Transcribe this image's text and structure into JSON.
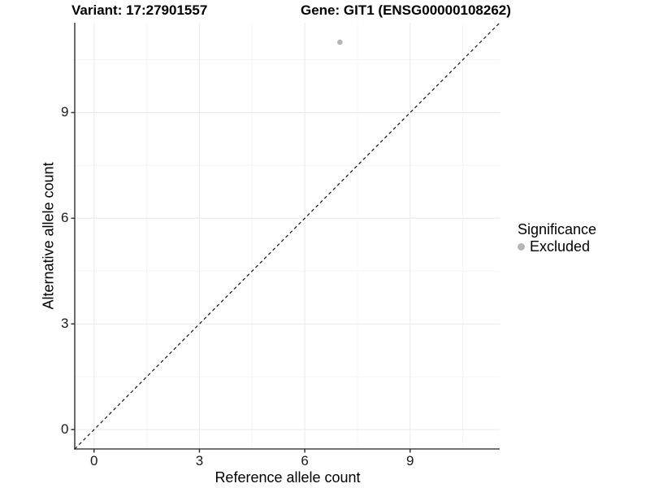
{
  "page": {
    "background": "#ffffff"
  },
  "chart_data": {
    "type": "scatter",
    "titles": {
      "left": "Variant: 17:27901557",
      "right": "Gene: GIT1 (ENSG00000108262)"
    },
    "xlabel": "Reference allele count",
    "ylabel": "Alternative allele count",
    "xlim": [
      -0.55,
      11.55
    ],
    "ylim": [
      -0.55,
      11.55
    ],
    "x_ticks": [
      0,
      3,
      6,
      9
    ],
    "y_ticks": [
      0,
      3,
      6,
      9
    ],
    "x_minor_ticks": [
      1.5,
      4.5,
      7.5,
      10.5
    ],
    "y_minor_ticks": [
      1.5,
      4.5,
      7.5,
      10.5
    ],
    "grid": true,
    "series": [
      {
        "name": "Excluded",
        "color": "#b5b5b5",
        "points": [
          {
            "x": 7,
            "y": 11
          }
        ]
      }
    ],
    "reference_line": {
      "slope": 1,
      "intercept": 0,
      "style": "dashed",
      "color": "#111111"
    },
    "legend": {
      "title": "Significance",
      "position": "right",
      "entries": [
        {
          "label": "Excluded",
          "color": "#b5b5b5"
        }
      ]
    },
    "colors": {
      "grid_major": "#ebebeb",
      "grid_minor": "#f5f5f5",
      "axis_line": "#474747",
      "tick_mark": "#333333"
    }
  }
}
